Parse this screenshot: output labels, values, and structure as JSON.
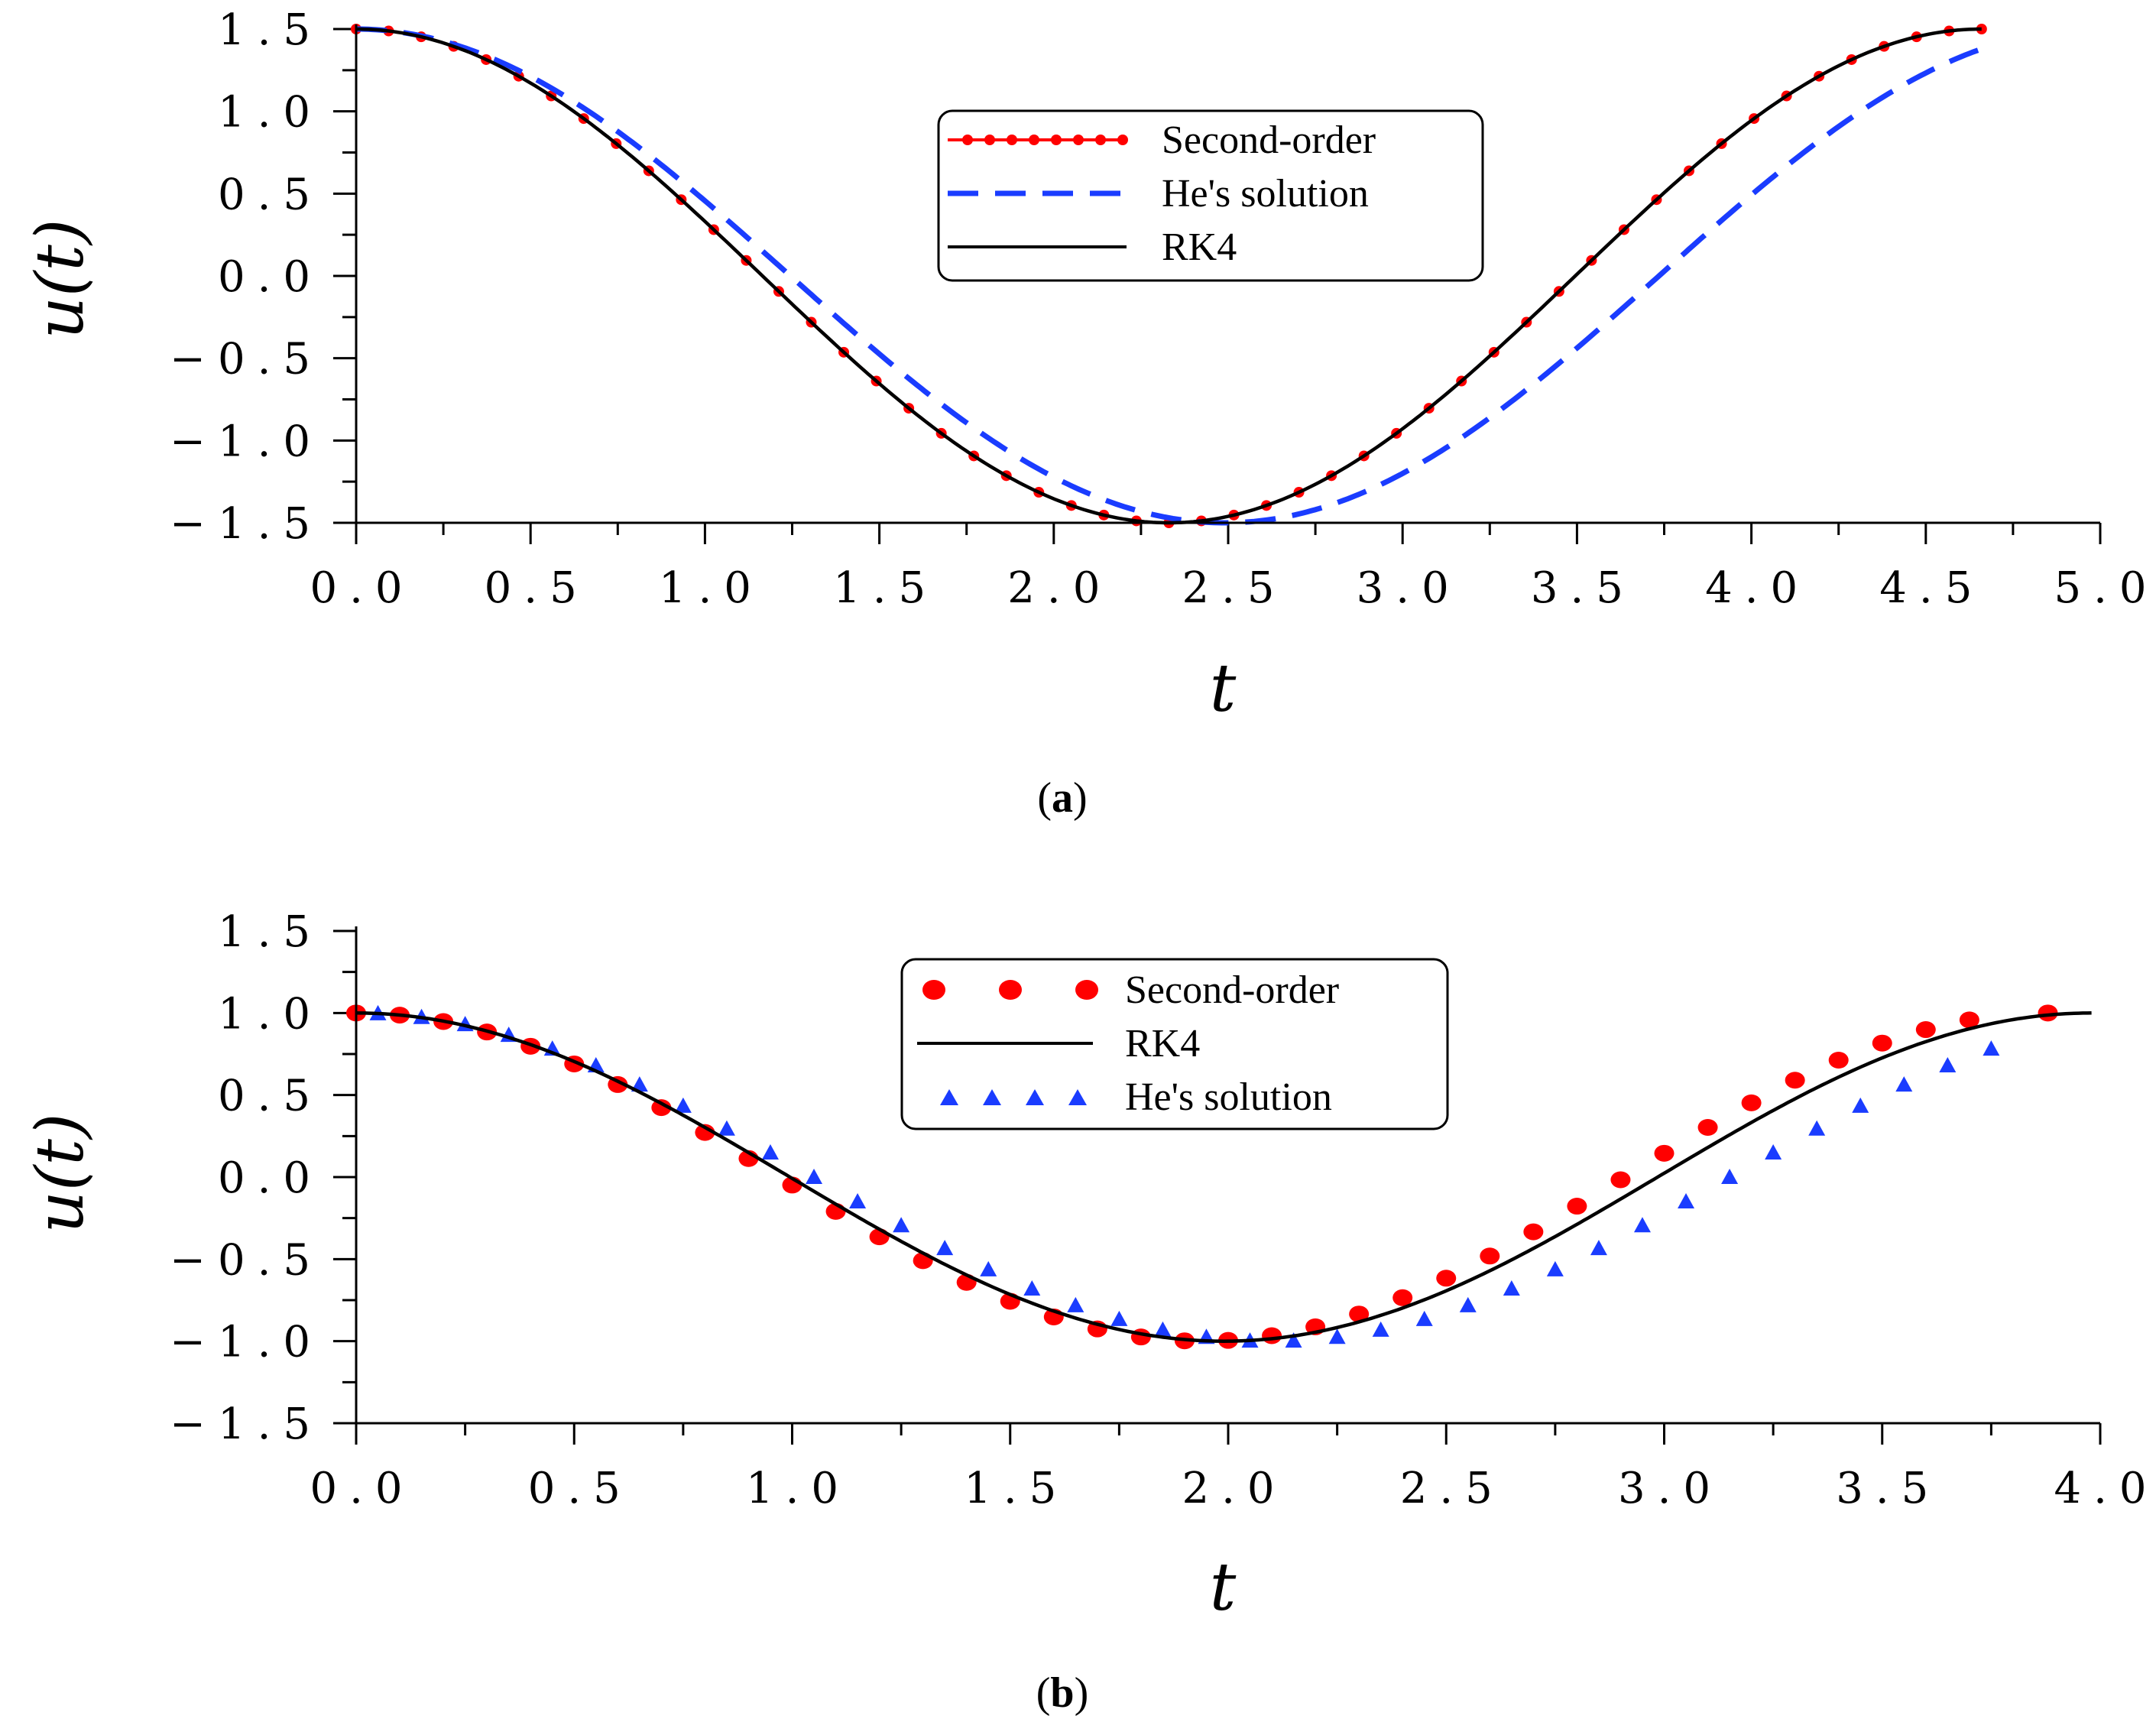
{
  "chart_data": [
    {
      "id": "a",
      "type": "line",
      "panel_label": "a",
      "xlabel": "t",
      "ylabel": "u(t)",
      "xlim": [
        0,
        5
      ],
      "ylim": [
        -1.5,
        1.5
      ],
      "xticks": [
        "0.0",
        "0.5",
        "1.0",
        "1.5",
        "2.0",
        "2.5",
        "3.0",
        "3.5",
        "4.0",
        "4.5",
        "5.0"
      ],
      "yticks": [
        "1.5",
        "1.0",
        "0.5",
        "0.0",
        "−0.5",
        "−1.0",
        "−1.5"
      ],
      "xtick_values": [
        0,
        0.5,
        1,
        1.5,
        2,
        2.5,
        3,
        3.5,
        4,
        4.5,
        5
      ],
      "ytick_values": [
        1.5,
        1,
        0.5,
        0,
        -0.5,
        -1,
        -1.5
      ],
      "legend_position": "top-center",
      "series": [
        {
          "name": "Second-order",
          "style": "red-line-dots",
          "color": "#ff0000",
          "amplitude": 1.5,
          "period": 4.66,
          "t_end": 4.66
        },
        {
          "name": "He's solution",
          "style": "blue-dashed",
          "color": "#1a3cff",
          "amplitude": 1.5,
          "period": 4.98,
          "t_end": 4.66
        },
        {
          "name": "RK4",
          "style": "black-solid",
          "color": "#000000",
          "amplitude": 1.5,
          "period": 4.66,
          "t_end": 4.66
        }
      ],
      "legend": [
        "Second-order",
        "He's solution",
        "RK4"
      ]
    },
    {
      "id": "b",
      "type": "line",
      "panel_label": "b",
      "xlabel": "t",
      "ylabel": "u(t)",
      "xlim": [
        0,
        4
      ],
      "ylim": [
        -1.5,
        1.5
      ],
      "xticks": [
        "0.0",
        "0.5",
        "1.0",
        "1.5",
        "2.0",
        "2.5",
        "3.0",
        "3.5",
        "4.0"
      ],
      "yticks": [
        "1.5",
        "1.0",
        "0.5",
        "0.0",
        "−0.5",
        "−1.0",
        "−1.5"
      ],
      "xtick_values": [
        0,
        0.5,
        1,
        1.5,
        2,
        2.5,
        3,
        3.5,
        4
      ],
      "ytick_values": [
        1.5,
        1,
        0.5,
        0,
        -0.5,
        -1,
        -1.5
      ],
      "legend_position": "top-center",
      "series": [
        {
          "name": "Second-order",
          "style": "red-dots",
          "color": "#ff0000",
          "amplitude": 1.0,
          "period": 3.88,
          "t_end": 3.88
        },
        {
          "name": "RK4",
          "style": "black-solid",
          "color": "#000000",
          "amplitude": 1.0,
          "period": 3.98,
          "t_end": 3.98
        },
        {
          "name": "He's solution",
          "style": "blue-triangles",
          "color": "#1a3cff",
          "amplitude": 1.0,
          "period": 4.2,
          "t_end": 3.88
        }
      ],
      "legend": [
        "Second-order",
        "RK4",
        "He's solution"
      ]
    }
  ]
}
